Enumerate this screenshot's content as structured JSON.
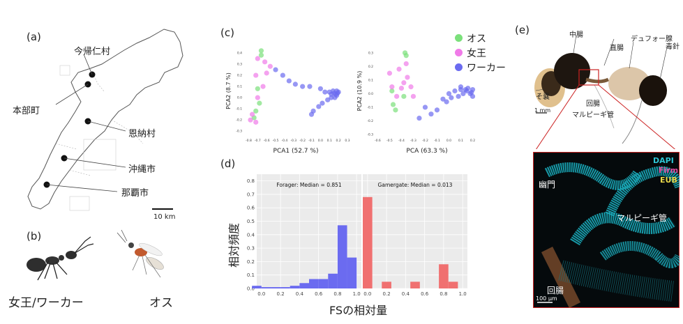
{
  "panels": {
    "a": {
      "label": "(a)",
      "places": [
        "今帰仁村",
        "本部町",
        "恩納村",
        "沖縄市",
        "那覇市"
      ],
      "scale": "10 km"
    },
    "b": {
      "label": "(b)",
      "caption_left": "女王/ワーカー",
      "caption_right": "オス"
    },
    "c": {
      "label": "(c)",
      "legend": [
        {
          "name": "オス",
          "color": "#7be07b"
        },
        {
          "name": "女王",
          "color": "#f07be8"
        },
        {
          "name": "ワーカー",
          "color": "#6b6bf0"
        }
      ]
    },
    "d": {
      "label": "(d)",
      "ylabel": "相対頻度",
      "xlabel": "FSの相対量"
    },
    "e": {
      "label": "(e)",
      "top_labels": [
        "中腸",
        "デュフォー腺",
        "直腸",
        "毒針",
        "そ嚢",
        "回腸",
        "マルピーギ管"
      ],
      "scale_top": "1 mm",
      "stain_labels": [
        {
          "text": "DAPI",
          "color": "#2ec6d6"
        },
        {
          "text": "Firm",
          "color": "#e84aa0"
        },
        {
          "text": "EUB",
          "color": "#e8d84a"
        }
      ],
      "bottom_labels": [
        "幽門",
        "マルピーギ管",
        "回腸"
      ],
      "scale_bottom": "100 μm"
    }
  },
  "chart_data": [
    {
      "type": "scatter",
      "xlabel": "PCA1 (52.7 %)",
      "ylabel": "PCA2 (8.7 %)",
      "xticks": [
        "-0.8",
        "-0.7",
        "-0.6",
        "-0.5",
        "-0.4",
        "-0.3",
        "-0.2",
        "-0.1",
        "0.0",
        "0.1",
        "0.2",
        "0.3"
      ],
      "yticks": [
        "0.4",
        "0.3",
        "0.2",
        "0.1",
        "0.0",
        "-0.1",
        "-0.2",
        "-0.3"
      ],
      "xlim": [
        -0.85,
        0.3
      ],
      "ylim": [
        -0.33,
        0.45
      ],
      "series": [
        {
          "name": "オス",
          "color": "#7be07b",
          "points": [
            [
              -0.66,
              0.42
            ],
            [
              -0.66,
              0.38
            ],
            [
              -0.7,
              0.08
            ],
            [
              -0.72,
              -0.12
            ],
            [
              -0.68,
              -0.05
            ],
            [
              -0.74,
              -0.18
            ]
          ]
        },
        {
          "name": "女王",
          "color": "#f07be8",
          "points": [
            [
              -0.7,
              0.35
            ],
            [
              -0.62,
              0.32
            ],
            [
              -0.56,
              0.28
            ],
            [
              -0.72,
              0.2
            ],
            [
              -0.76,
              -0.15
            ],
            [
              -0.72,
              -0.22
            ],
            [
              -0.78,
              -0.2
            ],
            [
              -0.7,
              0.0
            ],
            [
              -0.64,
              0.1
            ],
            [
              -0.6,
              0.22
            ]
          ]
        },
        {
          "name": "ワーカー",
          "color": "#6b6bf0",
          "points": [
            [
              -0.5,
              0.25
            ],
            [
              -0.42,
              0.2
            ],
            [
              -0.35,
              0.15
            ],
            [
              -0.28,
              0.12
            ],
            [
              -0.2,
              0.1
            ],
            [
              -0.12,
              0.1
            ],
            [
              0.0,
              0.08
            ],
            [
              0.05,
              0.05
            ],
            [
              0.1,
              0.05
            ],
            [
              0.12,
              0.03
            ],
            [
              0.15,
              0.04
            ],
            [
              0.18,
              0.02
            ],
            [
              0.2,
              0.05
            ],
            [
              0.16,
              0.0
            ],
            [
              0.12,
              0.0
            ],
            [
              0.08,
              -0.02
            ],
            [
              0.02,
              -0.05
            ],
            [
              -0.02,
              -0.08
            ],
            [
              -0.08,
              -0.12
            ],
            [
              -0.1,
              -0.15
            ],
            [
              0.14,
              0.06
            ],
            [
              0.17,
              0.03
            ],
            [
              0.19,
              0.04
            ],
            [
              0.18,
              0.06
            ]
          ]
        }
      ]
    },
    {
      "type": "scatter",
      "xlabel": "PCA (63.3 %)",
      "ylabel": "PCA2 (10.9 %)",
      "xticks": [
        "-0.6",
        "-0.5",
        "-0.4",
        "-0.3",
        "-0.2",
        "-0.1",
        "0.0",
        "0.1",
        "0.2"
      ],
      "yticks": [
        "0.3",
        "0.2",
        "0.1",
        "0.0",
        "-0.1",
        "-0.2",
        "-0.3"
      ],
      "xlim": [
        -0.62,
        0.25
      ],
      "ylim": [
        -0.3,
        0.34
      ],
      "series": [
        {
          "name": "オス",
          "color": "#7be07b",
          "points": [
            [
              -0.37,
              0.3
            ],
            [
              -0.36,
              0.28
            ],
            [
              -0.48,
              0.02
            ],
            [
              -0.47,
              -0.08
            ],
            [
              -0.38,
              -0.02
            ],
            [
              -0.45,
              -0.12
            ]
          ]
        },
        {
          "name": "女王",
          "color": "#f07be8",
          "points": [
            [
              -0.36,
              0.22
            ],
            [
              -0.42,
              0.18
            ],
            [
              -0.35,
              0.12
            ],
            [
              -0.5,
              0.15
            ],
            [
              -0.48,
              0.05
            ],
            [
              -0.3,
              -0.02
            ],
            [
              -0.32,
              0.05
            ],
            [
              -0.4,
              0.04
            ],
            [
              -0.44,
              -0.02
            ],
            [
              -0.38,
              0.08
            ]
          ]
        },
        {
          "name": "ワーカー",
          "color": "#6b6bf0",
          "points": [
            [
              -0.15,
              -0.15
            ],
            [
              -0.2,
              -0.1
            ],
            [
              -0.1,
              -0.12
            ],
            [
              -0.05,
              -0.04
            ],
            [
              0.0,
              0.0
            ],
            [
              0.05,
              0.02
            ],
            [
              0.1,
              0.03
            ],
            [
              0.15,
              0.02
            ],
            [
              0.18,
              0.0
            ],
            [
              0.2,
              0.03
            ],
            [
              0.12,
              0.0
            ],
            [
              0.08,
              -0.02
            ],
            [
              0.02,
              -0.03
            ],
            [
              -0.02,
              -0.06
            ],
            [
              0.16,
              0.04
            ],
            [
              0.19,
              0.01
            ],
            [
              0.14,
              0.03
            ],
            [
              0.2,
              -0.02
            ],
            [
              0.1,
              0.05
            ],
            [
              -0.25,
              -0.18
            ]
          ]
        }
      ]
    },
    {
      "type": "bar",
      "title": "Forager: Median = 0.851",
      "color": "#6b6bf0",
      "xticks": [
        "0.0",
        "0.2",
        "0.4",
        "0.6",
        "0.8",
        "1.0"
      ],
      "yticks": [
        "0.0",
        "0.1",
        "0.2",
        "0.3",
        "0.4",
        "0.5",
        "0.6",
        "0.7",
        "0.8"
      ],
      "xlim": [
        -0.05,
        1.05
      ],
      "ylim": [
        0,
        0.85
      ],
      "bin_width": 0.1,
      "bins": [
        [
          -0.05,
          0.02
        ],
        [
          0.05,
          0.01
        ],
        [
          0.15,
          0.01
        ],
        [
          0.25,
          0.01
        ],
        [
          0.35,
          0.02
        ],
        [
          0.45,
          0.04
        ],
        [
          0.55,
          0.07
        ],
        [
          0.65,
          0.07
        ],
        [
          0.75,
          0.11
        ],
        [
          0.85,
          0.47
        ],
        [
          0.95,
          0.23
        ]
      ]
    },
    {
      "type": "bar",
      "title": "Gamergate: Median = 0.013",
      "color": "#f07070",
      "xticks": [
        "0.0",
        "0.2",
        "0.4",
        "0.6",
        "0.8",
        "1.0"
      ],
      "yticks": [],
      "xlim": [
        -0.05,
        1.05
      ],
      "ylim": [
        0,
        0.85
      ],
      "bin_width": 0.1,
      "bins": [
        [
          0.0,
          0.68
        ],
        [
          0.2,
          0.05
        ],
        [
          0.5,
          0.05
        ],
        [
          0.8,
          0.18
        ],
        [
          0.9,
          0.05
        ]
      ]
    }
  ]
}
